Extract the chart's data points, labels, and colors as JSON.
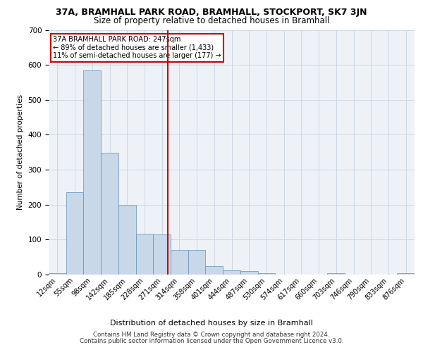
{
  "title_line1": "37A, BRAMHALL PARK ROAD, BRAMHALL, STOCKPORT, SK7 3JN",
  "title_line2": "Size of property relative to detached houses in Bramhall",
  "xlabel": "Distribution of detached houses by size in Bramhall",
  "ylabel": "Number of detached properties",
  "bin_labels": [
    "12sqm",
    "55sqm",
    "98sqm",
    "142sqm",
    "185sqm",
    "228sqm",
    "271sqm",
    "314sqm",
    "358sqm",
    "401sqm",
    "444sqm",
    "487sqm",
    "530sqm",
    "574sqm",
    "617sqm",
    "660sqm",
    "703sqm",
    "746sqm",
    "790sqm",
    "833sqm",
    "876sqm"
  ],
  "bar_heights": [
    5,
    235,
    585,
    348,
    200,
    117,
    115,
    70,
    70,
    25,
    13,
    10,
    5,
    0,
    0,
    0,
    5,
    0,
    0,
    0,
    5
  ],
  "bar_color": "#c8d8e8",
  "bar_edge_color": "#6090b8",
  "property_line_x": 6.35,
  "property_label_line1": "37A BRAMHALL PARK ROAD: 247sqm",
  "property_label_line2": "← 89% of detached houses are smaller (1,433)",
  "property_label_line3": "11% of semi-detached houses are larger (177) →",
  "annotation_box_color": "#ffffff",
  "annotation_box_edge_color": "#cc0000",
  "vline_color": "#cc0000",
  "grid_color": "#c8d4e0",
  "background_color": "#eef2f7",
  "ylim": [
    0,
    700
  ],
  "yticks": [
    0,
    100,
    200,
    300,
    400,
    500,
    600,
    700
  ],
  "footnote_line1": "Contains HM Land Registry data © Crown copyright and database right 2024.",
  "footnote_line2": "Contains public sector information licensed under the Open Government Licence v3.0."
}
